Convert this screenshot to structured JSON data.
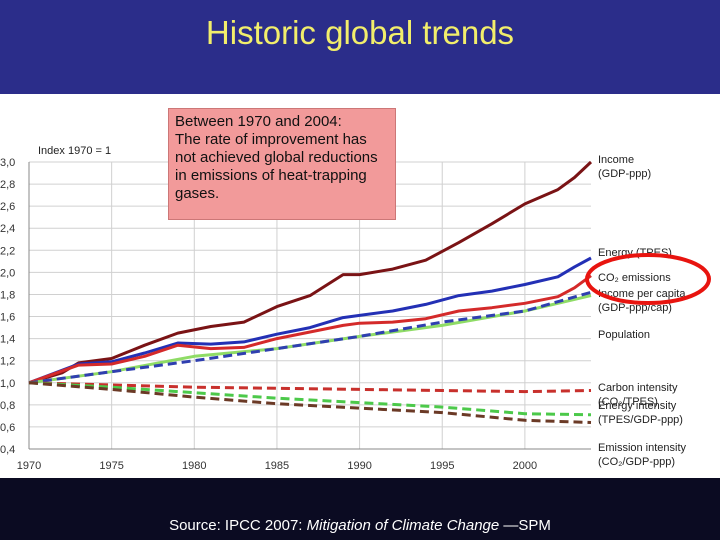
{
  "slide": {
    "title": "Historic global trends",
    "note": "Between 1970 and 2004:\nThe rate of improvement has not achieved global reductions in emissions of heat-trapping gases.",
    "source_prefix": "Source: IPCC 2007: ",
    "source_title": "Mitigation of Climate Change",
    "source_suffix": " —SPM"
  },
  "colors": {
    "header_bg": "#2b2d8a",
    "title": "#f2ee6b",
    "footer_bg": "#0b0b22",
    "note_bg": "#f29a9a",
    "highlight_ring": "#e8140f"
  },
  "chart_data": {
    "type": "line",
    "index_label": "Index 1970 = 1",
    "x_ticks": [
      "1970",
      "1975",
      "1980",
      "1985",
      "1990",
      "1995",
      "2000"
    ],
    "y_ticks": [
      "3,0",
      "2,8",
      "2,6",
      "2,4",
      "2,2",
      "2,0",
      "1,8",
      "1,6",
      "1,4",
      "1,2",
      "1,0",
      "0,8",
      "0,6",
      "0,4"
    ],
    "xlim": [
      1970,
      2004
    ],
    "ylim": [
      0.4,
      3.0
    ],
    "grid": true,
    "legend": "right",
    "series": [
      {
        "key": "income",
        "label_lines": [
          "Income",
          "(GDP-ppp)"
        ],
        "color": "#7a1315",
        "dash": false,
        "x": [
          1970,
          1972,
          1973,
          1975,
          1977,
          1979,
          1981,
          1983,
          1985,
          1987,
          1989,
          1990,
          1992,
          1994,
          1996,
          1998,
          2000,
          2002,
          2003,
          2004
        ],
        "y": [
          1.0,
          1.09,
          1.18,
          1.22,
          1.34,
          1.45,
          1.51,
          1.55,
          1.69,
          1.79,
          1.98,
          1.98,
          2.03,
          2.11,
          2.27,
          2.44,
          2.62,
          2.75,
          2.86,
          3.0
        ]
      },
      {
        "key": "energy",
        "label_lines": [
          "Energy (TPES)"
        ],
        "color": "#2330b5",
        "dash": false,
        "x": [
          1970,
          1973,
          1975,
          1977,
          1979,
          1981,
          1983,
          1985,
          1987,
          1989,
          1990,
          1992,
          1994,
          1996,
          1998,
          2000,
          2002,
          2003,
          2004
        ],
        "y": [
          1.0,
          1.17,
          1.19,
          1.27,
          1.36,
          1.35,
          1.37,
          1.44,
          1.5,
          1.59,
          1.61,
          1.65,
          1.71,
          1.79,
          1.83,
          1.89,
          1.96,
          2.05,
          2.13
        ]
      },
      {
        "key": "co2",
        "label_lines": [
          "CO₂ emissions"
        ],
        "color": "#d42a2a",
        "dash": false,
        "x": [
          1970,
          1973,
          1975,
          1977,
          1979,
          1981,
          1983,
          1985,
          1987,
          1989,
          1990,
          1992,
          1994,
          1996,
          1998,
          2000,
          2002,
          2003,
          2004
        ],
        "y": [
          1.0,
          1.16,
          1.17,
          1.24,
          1.34,
          1.31,
          1.32,
          1.4,
          1.46,
          1.52,
          1.54,
          1.55,
          1.58,
          1.65,
          1.68,
          1.72,
          1.78,
          1.86,
          1.97
        ]
      },
      {
        "key": "income_pc",
        "label_lines": [
          "Income per capita",
          "(GDP-ppp/cap)"
        ],
        "color": "#8fdc66",
        "dash": false,
        "x": [
          1970,
          1975,
          1980,
          1985,
          1990,
          1995,
          2000,
          2004
        ],
        "y": [
          1.0,
          1.1,
          1.24,
          1.31,
          1.42,
          1.52,
          1.65,
          1.79
        ]
      },
      {
        "key": "population",
        "label_lines": [
          "Population"
        ],
        "color": "#2f3fb0",
        "dash": true,
        "x": [
          1970,
          1975,
          1980,
          1985,
          1990,
          1995,
          2000,
          2004
        ],
        "y": [
          1.0,
          1.1,
          1.2,
          1.31,
          1.42,
          1.55,
          1.65,
          1.82
        ]
      },
      {
        "key": "carbon_int",
        "label_lines": [
          "Carbon intensity",
          "(CO₂/TPES)"
        ],
        "color": "#c8302c",
        "dash": true,
        "x": [
          1970,
          1975,
          1980,
          1985,
          1990,
          1995,
          2000,
          2004
        ],
        "y": [
          1.0,
          0.98,
          0.96,
          0.95,
          0.94,
          0.93,
          0.92,
          0.93
        ]
      },
      {
        "key": "energy_int",
        "label_lines": [
          "Energy intensity",
          "(TPES/GDP-ppp)"
        ],
        "color": "#4cc94a",
        "dash": true,
        "x": [
          1970,
          1975,
          1980,
          1985,
          1990,
          1995,
          2000,
          2004
        ],
        "y": [
          1.0,
          0.96,
          0.91,
          0.86,
          0.82,
          0.78,
          0.72,
          0.71
        ]
      },
      {
        "key": "emission_int",
        "label_lines": [
          "Emission intensity",
          "(CO₂/GDP-ppp)"
        ],
        "color": "#6b3a26",
        "dash": true,
        "x": [
          1970,
          1975,
          1980,
          1985,
          1990,
          1995,
          2000,
          2004
        ],
        "y": [
          1.0,
          0.94,
          0.87,
          0.81,
          0.77,
          0.73,
          0.66,
          0.64
        ]
      }
    ]
  }
}
